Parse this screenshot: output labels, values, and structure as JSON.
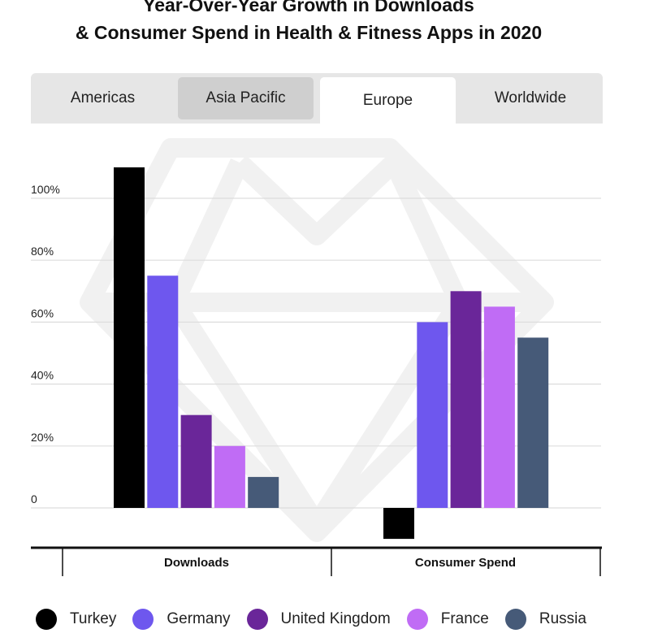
{
  "title_line1": "Year-Over-Year Growth in Downloads",
  "title_line2": "& Consumer Spend in Health & Fitness Apps in 2020",
  "tabs": [
    {
      "label": "Americas",
      "state": "normal"
    },
    {
      "label": "Asia Pacific",
      "state": "hover"
    },
    {
      "label": "Europe",
      "state": "active"
    },
    {
      "label": "Worldwide",
      "state": "normal"
    }
  ],
  "chart_data": {
    "type": "bar",
    "categories": [
      "Downloads",
      "Consumer Spend"
    ],
    "series": [
      {
        "name": "Turkey",
        "color": "#000000",
        "values": [
          110,
          -10
        ]
      },
      {
        "name": "Germany",
        "color": "#6e57ee",
        "values": [
          75,
          60
        ]
      },
      {
        "name": "United Kingdom",
        "color": "#6a2699",
        "values": [
          30,
          70
        ]
      },
      {
        "name": "France",
        "color": "#c06cf5",
        "values": [
          20,
          65
        ]
      },
      {
        "name": "Russia",
        "color": "#465a78",
        "values": [
          10,
          55
        ]
      }
    ],
    "ylim": [
      -13,
      115
    ],
    "yticks": [
      0,
      20,
      40,
      60,
      80,
      100
    ],
    "ytick_labels": [
      "0",
      "20%",
      "40%",
      "60%",
      "80%",
      "100%"
    ],
    "grid": true,
    "legend_position": "bottom"
  }
}
